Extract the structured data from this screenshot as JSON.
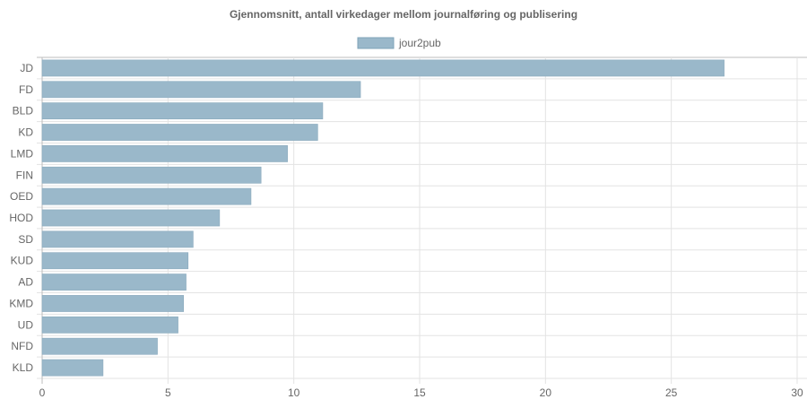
{
  "chart_data": {
    "type": "bar",
    "orientation": "horizontal",
    "title": "Gjennomsnitt, antall virkedager mellom journalføring og publisering",
    "categories": [
      "JD",
      "FD",
      "BLD",
      "KD",
      "LMD",
      "FIN",
      "OED",
      "HOD",
      "SD",
      "KUD",
      "AD",
      "KMD",
      "UD",
      "NFD",
      "KLD"
    ],
    "series": [
      {
        "name": "jour2pub",
        "color": "#9ab8ca",
        "values": [
          27.1,
          12.65,
          11.15,
          10.95,
          9.75,
          8.7,
          8.3,
          7.05,
          6.0,
          5.8,
          5.72,
          5.62,
          5.4,
          4.58,
          2.42
        ]
      }
    ],
    "xlim": [
      0,
      30
    ],
    "xticks": [
      "0",
      "5",
      "10",
      "15",
      "20",
      "25",
      "30"
    ],
    "xlabel": "",
    "ylabel": "",
    "grid": true,
    "legend_position": "top"
  }
}
